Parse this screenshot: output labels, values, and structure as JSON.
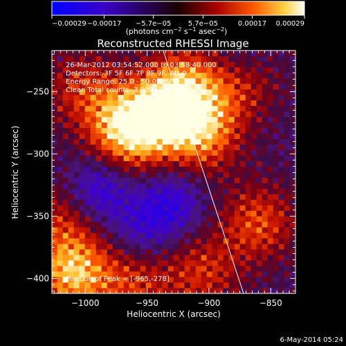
{
  "chart_data": {
    "type": "heatmap",
    "title": "Reconstructed RHESSI Image",
    "xlabel": "Heliocentric X (arcsec)",
    "ylabel": "Heliocentric Y (arcsec)",
    "xlim": [
      -1027,
      -830
    ],
    "ylim": [
      -412,
      -217
    ],
    "x_ticks": [
      -1000,
      -950,
      -900,
      -850
    ],
    "x_tick_labels": [
      "−1000",
      "−950",
      "−900",
      "−850"
    ],
    "y_ticks": [
      -250,
      -300,
      -350,
      -400
    ],
    "y_tick_labels": [
      "−250",
      "−300",
      "−350",
      "−400"
    ],
    "colorbar": {
      "range": [
        -0.00029,
        0.00029
      ],
      "tick_values": [
        -0.00029,
        -0.00017,
        -5.7e-05,
        5.7e-05,
        0.00017,
        0.00029
      ],
      "tick_labels": [
        "−0.00029",
        "−0.00017",
        "−5.7e−05",
        "5.7e−05",
        "0.00017",
        "0.00029"
      ],
      "unit_main": "(photons cm",
      "unit_sup1": "−2",
      "unit_mid": " s",
      "unit_sup2": "−1",
      "unit_end1": " asec",
      "unit_sup3": "−2",
      "unit_end2": ")"
    },
    "annotations": [
      "26-Mar-2012 03:54:52.000 to 03:58:40.000",
      "Detectors: 3F 5F 6F 7F 8F 9F, Att 0",
      "Energy Range: 25.0 - 50.0 keV",
      "Clean    Total counts: 3.90E+03"
    ],
    "peak_label": "Position of Peak = [-965,-278]",
    "peak": [
      -965,
      -278
    ],
    "limb_line": [
      [
        -937,
        -217
      ],
      [
        -872,
        -412
      ]
    ],
    "sources": [
      {
        "x": -965,
        "y": -280,
        "amp": 1.0
      },
      {
        "x": -935,
        "y": -266,
        "amp": 0.65
      },
      {
        "x": -905,
        "y": -283,
        "amp": 0.7
      },
      {
        "x": -1010,
        "y": -395,
        "amp": 0.85
      },
      {
        "x": -920,
        "y": -245,
        "amp": 0.6
      },
      {
        "x": -860,
        "y": -355,
        "amp": 0.55
      },
      {
        "x": -875,
        "y": -240,
        "amp": 0.5
      },
      {
        "x": -1002,
        "y": -248,
        "amp": 0.45
      },
      {
        "x": -960,
        "y": -405,
        "amp": 0.45
      },
      {
        "x": -905,
        "y": -395,
        "amp": 0.45
      },
      {
        "x": -1018,
        "y": -350,
        "amp": 0.4
      }
    ],
    "minima": [
      {
        "x": -990,
        "y": -330,
        "amp": 0.55
      },
      {
        "x": -930,
        "y": -340,
        "amp": 0.5
      },
      {
        "x": -875,
        "y": -225,
        "amp": 0.3
      },
      {
        "x": -955,
        "y": -360,
        "amp": 0.35
      }
    ]
  },
  "footer": {
    "timestamp": "6-May-2014 05:24"
  }
}
